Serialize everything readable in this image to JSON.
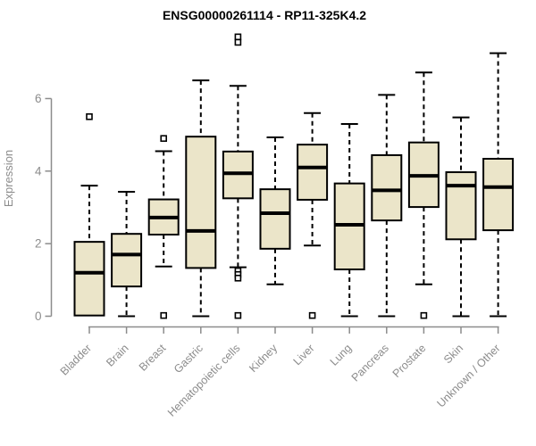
{
  "chart_data": {
    "type": "boxplot",
    "title": "ENSG00000261114 - RP11-325K4.2",
    "xlabel": "",
    "ylabel": "Expression",
    "yticks": [
      0,
      2,
      4,
      6
    ],
    "ylim": [
      0,
      7.8
    ],
    "grid": false,
    "legend": "none",
    "categories": [
      "Bladder",
      "Brain",
      "Breast",
      "Gastric",
      "Hematopoietic cells",
      "Kidney",
      "Liver",
      "Lung",
      "Pancreas",
      "Prostate",
      "Skin",
      "Unknown / Other"
    ],
    "boxes": [
      {
        "category": "Bladder",
        "whisker_low": 0.02,
        "q1": 0.02,
        "median": 1.2,
        "q3": 2.05,
        "whisker_high": 3.6,
        "outliers": [
          5.5
        ]
      },
      {
        "category": "Brain",
        "whisker_low": 0.0,
        "q1": 0.82,
        "median": 1.7,
        "q3": 2.27,
        "whisker_high": 3.43,
        "outliers": []
      },
      {
        "category": "Breast",
        "whisker_low": 1.37,
        "q1": 2.25,
        "median": 2.72,
        "q3": 3.22,
        "whisker_high": 4.55,
        "outliers": [
          4.9,
          0.02
        ]
      },
      {
        "category": "Gastric",
        "whisker_low": 0.0,
        "q1": 1.33,
        "median": 2.35,
        "q3": 4.95,
        "whisker_high": 6.5,
        "outliers": []
      },
      {
        "category": "Hematopoietic cells",
        "whisker_low": 1.35,
        "q1": 3.25,
        "median": 3.94,
        "q3": 4.54,
        "whisker_high": 6.35,
        "outliers": [
          7.7,
          7.55,
          1.25,
          1.15,
          1.05,
          0.02
        ]
      },
      {
        "category": "Kidney",
        "whisker_low": 0.88,
        "q1": 1.86,
        "median": 2.84,
        "q3": 3.5,
        "whisker_high": 4.93,
        "outliers": []
      },
      {
        "category": "Liver",
        "whisker_low": 1.95,
        "q1": 3.21,
        "median": 4.1,
        "q3": 4.73,
        "whisker_high": 5.6,
        "outliers": [
          0.02
        ]
      },
      {
        "category": "Lung",
        "whisker_low": 0.0,
        "q1": 1.29,
        "median": 2.52,
        "q3": 3.66,
        "whisker_high": 5.3,
        "outliers": []
      },
      {
        "category": "Pancreas",
        "whisker_low": 0.0,
        "q1": 2.64,
        "median": 3.47,
        "q3": 4.44,
        "whisker_high": 6.1,
        "outliers": []
      },
      {
        "category": "Prostate",
        "whisker_low": 0.88,
        "q1": 3.01,
        "median": 3.87,
        "q3": 4.79,
        "whisker_high": 6.72,
        "outliers": [
          0.02
        ]
      },
      {
        "category": "Skin",
        "whisker_low": 0.0,
        "q1": 2.12,
        "median": 3.6,
        "q3": 3.97,
        "whisker_high": 5.48,
        "outliers": []
      },
      {
        "category": "Unknown / Other",
        "whisker_low": 0.0,
        "q1": 2.37,
        "median": 3.56,
        "q3": 4.34,
        "whisker_high": 7.25,
        "outliers": []
      }
    ],
    "colors": {
      "box_fill": "#EBE5C9",
      "box_stroke": "#000000",
      "median_color": "#000000",
      "axis_color": "#8C8C8C",
      "title_color": "#000000",
      "background": "#FFFFFF"
    }
  }
}
